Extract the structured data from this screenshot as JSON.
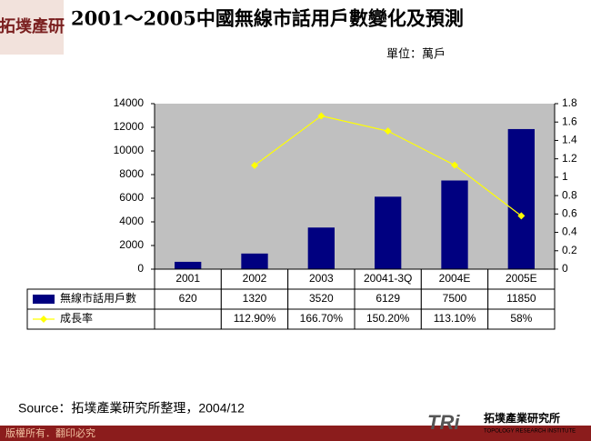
{
  "header": {
    "logo": "拓墣產研",
    "unit": "單位：萬戶"
  },
  "chart_data": {
    "type": "bar-line",
    "title": "2001～2005中國無線市話用戶數變化及預測",
    "categories": [
      "2001",
      "2002",
      "2003",
      "20041-3Q",
      "2004E",
      "2005E"
    ],
    "series": [
      {
        "name": "無線市話用戶數",
        "type": "bar",
        "color": "#000080",
        "values": [
          620,
          1320,
          3520,
          6129,
          7500,
          11850
        ]
      },
      {
        "name": "成長率",
        "type": "line",
        "axis": "y2",
        "color": "#ffff00",
        "values": [
          null,
          1.129,
          1.667,
          1.502,
          1.131,
          0.58
        ],
        "value_labels": [
          null,
          "112.90%",
          "166.70%",
          "150.20%",
          "113.10%",
          "58%"
        ]
      }
    ],
    "ylim": [
      0,
      14000
    ],
    "yticks": [
      0,
      2000,
      4000,
      6000,
      8000,
      10000,
      12000,
      14000
    ],
    "y2lim": [
      0,
      1.8
    ],
    "y2ticks": [
      0,
      0.2,
      0.4,
      0.6,
      0.8,
      1,
      1.2,
      1.4,
      1.6,
      1.8
    ],
    "plot_background": "#c0c0c0"
  },
  "footer": {
    "source": "Source：拓墣產業研究所整理，2004/12",
    "copyright": "版權所有．翻印必究",
    "brand": "TRi",
    "institute": "拓墣產業研究所",
    "institute_en": "TOPOLOGY RESEARCH INSTITUTE"
  }
}
